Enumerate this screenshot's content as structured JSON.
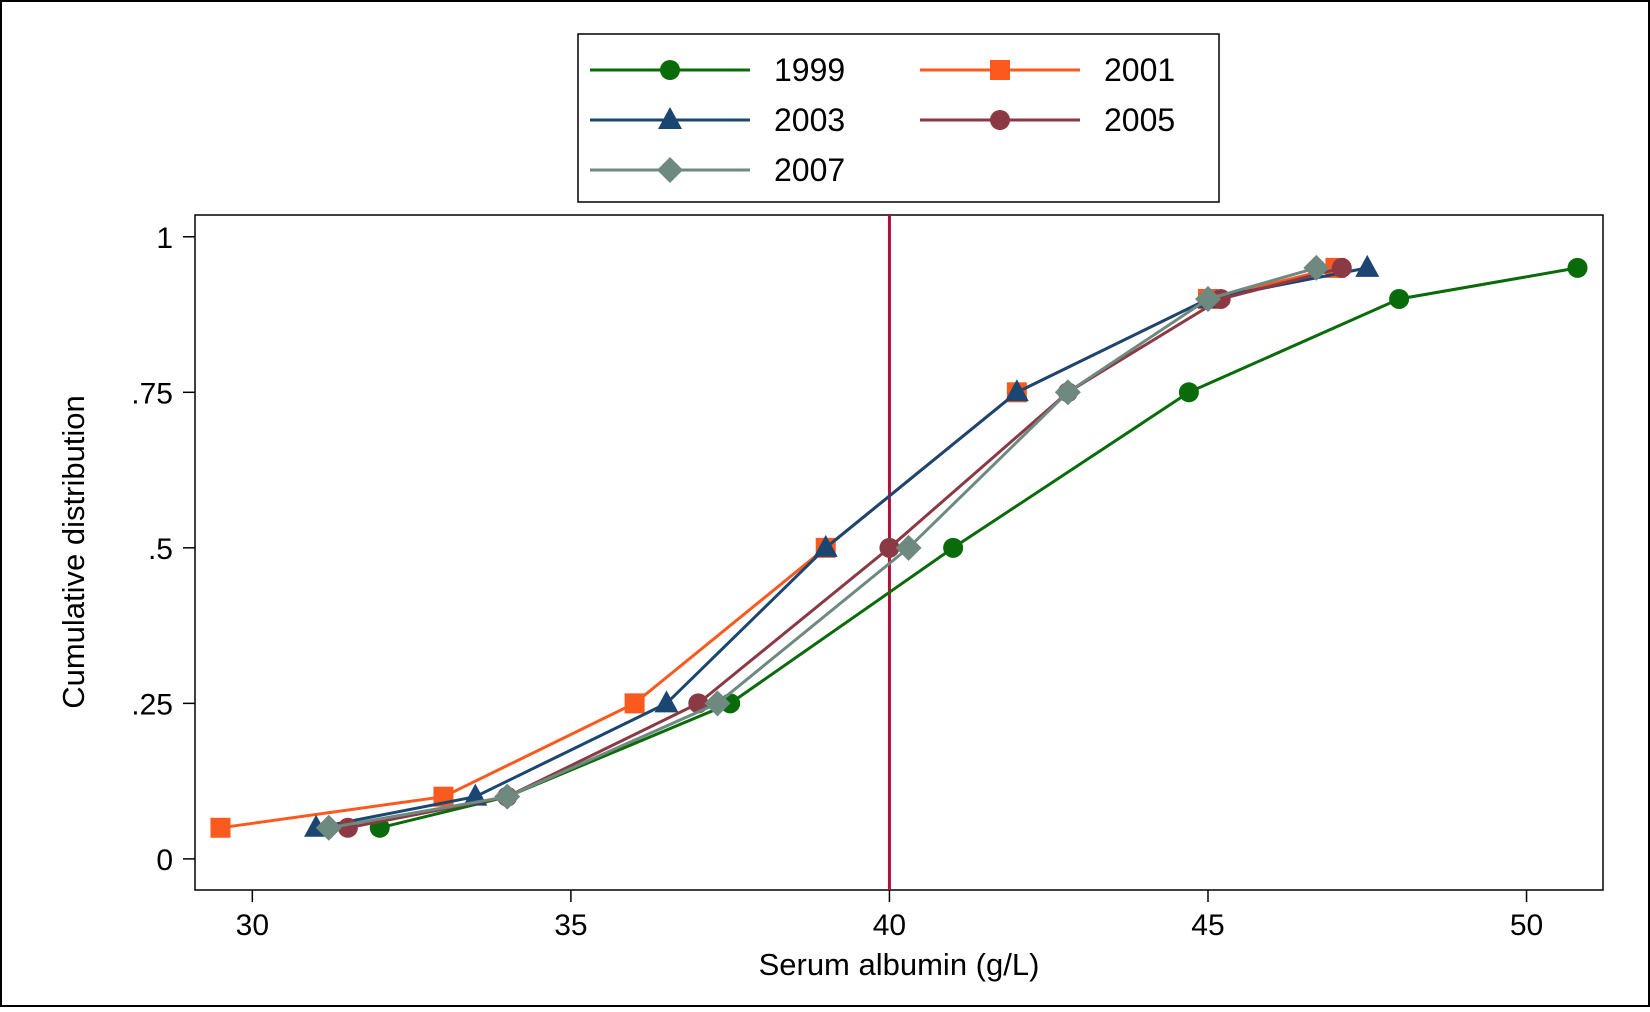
{
  "chart_data": {
    "type": "line",
    "xlabel": "Serum albumin (g/L)",
    "ylabel": "Cumulative distribution",
    "xlim": [
      29.1,
      51.2
    ],
    "ylim": [
      -0.05,
      1.035
    ],
    "x_ticks": [
      30,
      35,
      40,
      45,
      50
    ],
    "x_tick_labels": [
      "30",
      "35",
      "40",
      "45",
      "50"
    ],
    "y_ticks": [
      0,
      0.25,
      0.5,
      0.75,
      1
    ],
    "y_tick_labels": [
      "0",
      ".25",
      ".5",
      ".75",
      "1"
    ],
    "reference_line": {
      "x": 40,
      "color": "#b0103a"
    },
    "grid": false,
    "legend_position": "top-center",
    "series": [
      {
        "name": "1999",
        "color": "#0a6b0a",
        "marker": "circle",
        "points": [
          [
            32.0,
            0.05
          ],
          [
            34.0,
            0.1
          ],
          [
            37.5,
            0.25
          ],
          [
            41.0,
            0.5
          ],
          [
            44.7,
            0.75
          ],
          [
            48.0,
            0.9
          ],
          [
            50.8,
            0.95
          ]
        ]
      },
      {
        "name": "2001",
        "color": "#fb5a1f",
        "marker": "square",
        "points": [
          [
            29.5,
            0.05
          ],
          [
            33.0,
            0.1
          ],
          [
            36.0,
            0.25
          ],
          [
            39.0,
            0.5
          ],
          [
            42.0,
            0.75
          ],
          [
            45.0,
            0.9
          ],
          [
            47.0,
            0.95
          ]
        ]
      },
      {
        "name": "2003",
        "color": "#1c4672",
        "marker": "triangle",
        "points": [
          [
            31.0,
            0.05
          ],
          [
            33.5,
            0.1
          ],
          [
            36.5,
            0.25
          ],
          [
            39.0,
            0.5
          ],
          [
            42.0,
            0.75
          ],
          [
            45.0,
            0.9
          ],
          [
            47.5,
            0.95
          ]
        ]
      },
      {
        "name": "2005",
        "color": "#8b3a45",
        "marker": "circle",
        "points": [
          [
            31.5,
            0.05
          ],
          [
            34.0,
            0.1
          ],
          [
            37.0,
            0.25
          ],
          [
            40.0,
            0.5
          ],
          [
            42.8,
            0.75
          ],
          [
            45.2,
            0.9
          ],
          [
            47.1,
            0.95
          ]
        ]
      },
      {
        "name": "2007",
        "color": "#6e8a80",
        "marker": "diamond",
        "points": [
          [
            31.2,
            0.05
          ],
          [
            34.0,
            0.1
          ],
          [
            37.3,
            0.25
          ],
          [
            40.3,
            0.5
          ],
          [
            42.8,
            0.75
          ],
          [
            45.0,
            0.9
          ],
          [
            46.7,
            0.95
          ]
        ]
      }
    ]
  }
}
